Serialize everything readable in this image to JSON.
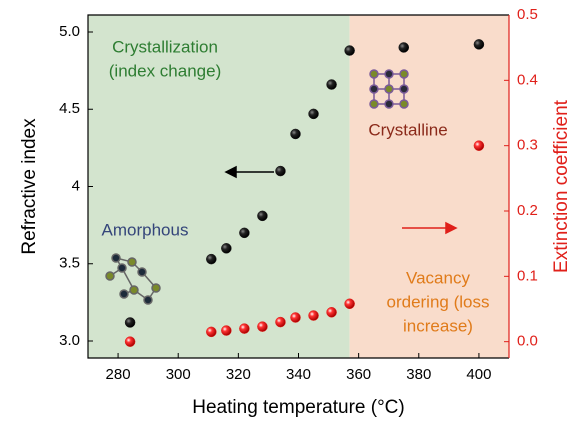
{
  "chart_data": {
    "type": "scatter",
    "xlabel": "Heating temperature (°C)",
    "ylabel": "Refractive index",
    "y2label": "Extinction coefficient",
    "xlim": [
      270,
      410
    ],
    "xticks": [
      280,
      300,
      320,
      340,
      360,
      380,
      400
    ],
    "ylim": [
      2.89,
      5.11
    ],
    "yticks": [
      {
        "value": 3,
        "label": "3.0"
      },
      3.5,
      4,
      4.5,
      {
        "value": 5,
        "label": "5.0"
      }
    ],
    "y2lim": [
      -0.025,
      0.5
    ],
    "y2ticks": [
      {
        "value": 0,
        "label": "0.0"
      },
      0.1,
      0.2,
      0.3,
      0.4,
      0.5
    ],
    "regions": [
      {
        "from": 270,
        "to": 357,
        "color": "#d3e4ce"
      },
      {
        "from": 357,
        "to": 410,
        "color": "#f9dccb"
      }
    ],
    "series": [
      {
        "name": "Refractive index",
        "color": "#1a1a1a",
        "x": [
          284,
          311,
          316,
          322,
          328,
          334,
          339,
          345,
          351,
          357,
          375,
          400
        ],
        "values": [
          3.12,
          3.53,
          3.6,
          3.7,
          3.81,
          4.1,
          4.34,
          4.47,
          4.66,
          4.88,
          4.9,
          4.92
        ]
      },
      {
        "name": "Extinction coefficient",
        "color": "#e0201a",
        "axis": "y2",
        "x": [
          284,
          311,
          316,
          322,
          328,
          334,
          339,
          345,
          351,
          357,
          400
        ],
        "values": [
          0.0,
          0.015,
          0.017,
          0.02,
          0.023,
          0.03,
          0.037,
          0.04,
          0.045,
          0.058,
          0.3
        ]
      }
    ],
    "annotations": [
      {
        "lines": [
          "Crystallization",
          "(index change)"
        ],
        "color": "#2e7d32"
      },
      {
        "lines": [
          "Crystalline"
        ],
        "color": "#8b2a1a"
      },
      {
        "lines": [
          "Amorphous"
        ],
        "color": "#34457a"
      },
      {
        "lines": [
          "Vacancy",
          "ordering (loss",
          "increase)"
        ],
        "color": "#e07b1a"
      }
    ]
  }
}
